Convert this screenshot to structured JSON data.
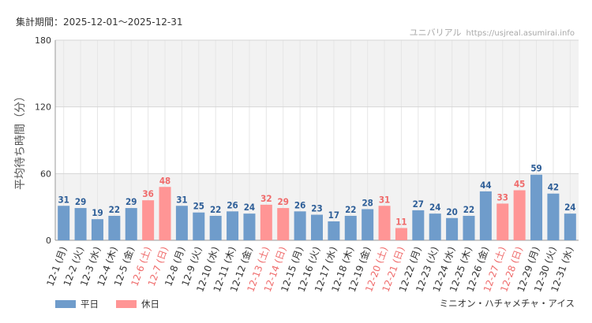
{
  "header": {
    "period_label": "集計期間：2025-12-01～2025-12-31",
    "site_name": "ユニバリアル",
    "site_url": "https://usjreal.asumirai.info"
  },
  "attraction_name": "ミニオン・ハチャメチャ・アイス",
  "colors": {
    "weekday": "#6f9ccb",
    "holiday": "#ff9595",
    "holiday_label": "#ef6b6b",
    "value_label_weekday": "#2f5f98",
    "band": "#f2f2f2"
  },
  "chart_data": {
    "type": "bar",
    "ylabel": "平均待ち時間（分）",
    "ylim": [
      0,
      180
    ],
    "yticks": [
      0,
      60,
      120,
      180
    ],
    "bands": [
      [
        120,
        180
      ],
      [
        0,
        60
      ]
    ],
    "categories": [
      "12-1 (月)",
      "12-2 (火)",
      "12-3 (水)",
      "12-4 (木)",
      "12-5 (金)",
      "12-6 (土)",
      "12-7 (日)",
      "12-8 (月)",
      "12-9 (火)",
      "12-10 (水)",
      "12-11 (木)",
      "12-12 (金)",
      "12-13 (土)",
      "12-14 (日)",
      "12-15 (月)",
      "12-16 (火)",
      "12-17 (水)",
      "12-18 (木)",
      "12-19 (金)",
      "12-20 (土)",
      "12-21 (日)",
      "12-22 (月)",
      "12-23 (火)",
      "12-24 (水)",
      "12-25 (木)",
      "12-26 (金)",
      "12-27 (土)",
      "12-28 (日)",
      "12-29 (月)",
      "12-30 (火)",
      "12-31 (水)"
    ],
    "values": [
      31,
      29,
      19,
      22,
      29,
      36,
      48,
      31,
      25,
      22,
      26,
      24,
      32,
      29,
      26,
      23,
      17,
      22,
      28,
      31,
      11,
      27,
      24,
      20,
      22,
      44,
      33,
      45,
      59,
      42,
      24
    ],
    "day_type": [
      "平日",
      "平日",
      "平日",
      "平日",
      "平日",
      "休日",
      "休日",
      "平日",
      "平日",
      "平日",
      "平日",
      "平日",
      "休日",
      "休日",
      "平日",
      "平日",
      "平日",
      "平日",
      "平日",
      "休日",
      "休日",
      "平日",
      "平日",
      "平日",
      "平日",
      "平日",
      "休日",
      "休日",
      "平日",
      "平日",
      "平日"
    ],
    "legend": [
      {
        "label": "平日",
        "color": "#6f9ccb"
      },
      {
        "label": "休日",
        "color": "#ff9595"
      }
    ]
  }
}
